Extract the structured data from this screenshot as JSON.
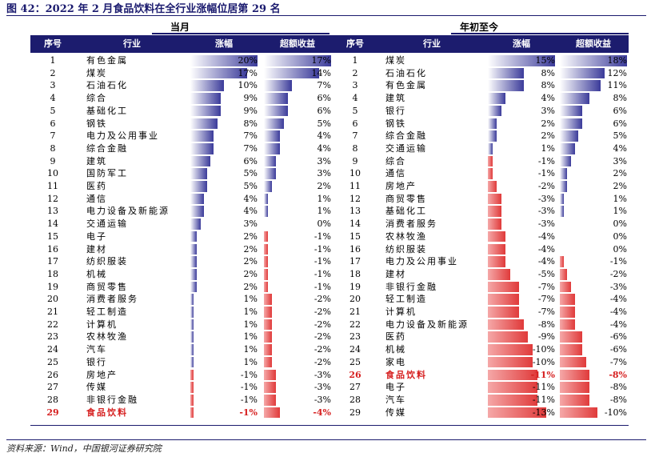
{
  "title": "图 42：2022 年 2 月食品饮料在全行业涨幅位居第 29 名",
  "groups": {
    "left": "当月",
    "right": "年初至今"
  },
  "headers": {
    "rank": "序号",
    "industry": "行业",
    "change": "涨幅",
    "excess": "超额收益"
  },
  "source": "资料来源：Wind，中国银河证券研究院",
  "highlight_industry": "食品饮料",
  "colors": {
    "header_bg": "#1c1c6e",
    "positive_bar": "#3b3b9a",
    "negative_bar": "#e03a3a",
    "highlight_text": "#d61f1f"
  },
  "scales": {
    "month_change_max": 20,
    "month_excess_max": 17,
    "ytd_change_max": 15,
    "ytd_excess_max": 18
  },
  "month": [
    {
      "rank": "1",
      "industry": "有色金属",
      "change": "20%",
      "change_v": 20,
      "excess": "17%",
      "excess_v": 17
    },
    {
      "rank": "2",
      "industry": "煤炭",
      "change": "17%",
      "change_v": 17,
      "excess": "14%",
      "excess_v": 14
    },
    {
      "rank": "3",
      "industry": "石油石化",
      "change": "10%",
      "change_v": 10,
      "excess": "7%",
      "excess_v": 7
    },
    {
      "rank": "4",
      "industry": "综合",
      "change": "9%",
      "change_v": 9,
      "excess": "6%",
      "excess_v": 6
    },
    {
      "rank": "5",
      "industry": "基础化工",
      "change": "9%",
      "change_v": 9,
      "excess": "6%",
      "excess_v": 6
    },
    {
      "rank": "6",
      "industry": "钢铁",
      "change": "8%",
      "change_v": 8,
      "excess": "5%",
      "excess_v": 5
    },
    {
      "rank": "7",
      "industry": "电力及公用事业",
      "change": "7%",
      "change_v": 7,
      "excess": "4%",
      "excess_v": 4
    },
    {
      "rank": "8",
      "industry": "综合金融",
      "change": "7%",
      "change_v": 7,
      "excess": "4%",
      "excess_v": 4
    },
    {
      "rank": "9",
      "industry": "建筑",
      "change": "6%",
      "change_v": 6,
      "excess": "3%",
      "excess_v": 3
    },
    {
      "rank": "10",
      "industry": "国防军工",
      "change": "5%",
      "change_v": 5,
      "excess": "3%",
      "excess_v": 3
    },
    {
      "rank": "11",
      "industry": "医药",
      "change": "5%",
      "change_v": 5,
      "excess": "2%",
      "excess_v": 2
    },
    {
      "rank": "12",
      "industry": "通信",
      "change": "4%",
      "change_v": 4,
      "excess": "1%",
      "excess_v": 1
    },
    {
      "rank": "13",
      "industry": "电力设备及新能源",
      "change": "4%",
      "change_v": 4,
      "excess": "1%",
      "excess_v": 1
    },
    {
      "rank": "14",
      "industry": "交通运输",
      "change": "3%",
      "change_v": 3,
      "excess": "0%",
      "excess_v": 0
    },
    {
      "rank": "15",
      "industry": "电子",
      "change": "2%",
      "change_v": 2,
      "excess": "-1%",
      "excess_v": -1
    },
    {
      "rank": "16",
      "industry": "建材",
      "change": "2%",
      "change_v": 2,
      "excess": "-1%",
      "excess_v": -1
    },
    {
      "rank": "17",
      "industry": "纺织服装",
      "change": "2%",
      "change_v": 2,
      "excess": "-1%",
      "excess_v": -1
    },
    {
      "rank": "18",
      "industry": "机械",
      "change": "2%",
      "change_v": 2,
      "excess": "-1%",
      "excess_v": -1
    },
    {
      "rank": "19",
      "industry": "商贸零售",
      "change": "2%",
      "change_v": 2,
      "excess": "-1%",
      "excess_v": -1
    },
    {
      "rank": "20",
      "industry": "消费者服务",
      "change": "1%",
      "change_v": 1,
      "excess": "-2%",
      "excess_v": -2
    },
    {
      "rank": "21",
      "industry": "轻工制造",
      "change": "1%",
      "change_v": 1,
      "excess": "-2%",
      "excess_v": -2
    },
    {
      "rank": "22",
      "industry": "计算机",
      "change": "1%",
      "change_v": 1,
      "excess": "-2%",
      "excess_v": -2
    },
    {
      "rank": "23",
      "industry": "农林牧渔",
      "change": "1%",
      "change_v": 1,
      "excess": "-2%",
      "excess_v": -2
    },
    {
      "rank": "24",
      "industry": "汽车",
      "change": "1%",
      "change_v": 1,
      "excess": "-2%",
      "excess_v": -2
    },
    {
      "rank": "25",
      "industry": "银行",
      "change": "1%",
      "change_v": 1,
      "excess": "-2%",
      "excess_v": -2
    },
    {
      "rank": "26",
      "industry": "房地产",
      "change": "-1%",
      "change_v": -1,
      "excess": "-3%",
      "excess_v": -3
    },
    {
      "rank": "27",
      "industry": "传媒",
      "change": "-1%",
      "change_v": -1,
      "excess": "-3%",
      "excess_v": -3
    },
    {
      "rank": "28",
      "industry": "非银行金融",
      "change": "-1%",
      "change_v": -1,
      "excess": "-3%",
      "excess_v": -3
    },
    {
      "rank": "29",
      "industry": "食品饮料",
      "change": "-1%",
      "change_v": -1,
      "excess": "-4%",
      "excess_v": -4
    }
  ],
  "ytd": [
    {
      "rank": "1",
      "industry": "煤炭",
      "change": "15%",
      "change_v": 15,
      "excess": "18%",
      "excess_v": 18
    },
    {
      "rank": "2",
      "industry": "石油石化",
      "change": "8%",
      "change_v": 8,
      "excess": "12%",
      "excess_v": 12
    },
    {
      "rank": "3",
      "industry": "有色金属",
      "change": "8%",
      "change_v": 8,
      "excess": "11%",
      "excess_v": 11
    },
    {
      "rank": "4",
      "industry": "建筑",
      "change": "4%",
      "change_v": 4,
      "excess": "8%",
      "excess_v": 8
    },
    {
      "rank": "5",
      "industry": "银行",
      "change": "3%",
      "change_v": 3,
      "excess": "6%",
      "excess_v": 6
    },
    {
      "rank": "6",
      "industry": "钢铁",
      "change": "2%",
      "change_v": 2,
      "excess": "6%",
      "excess_v": 6
    },
    {
      "rank": "7",
      "industry": "综合金融",
      "change": "2%",
      "change_v": 2,
      "excess": "5%",
      "excess_v": 5
    },
    {
      "rank": "8",
      "industry": "交通运输",
      "change": "1%",
      "change_v": 1,
      "excess": "4%",
      "excess_v": 4
    },
    {
      "rank": "9",
      "industry": "综合",
      "change": "-1%",
      "change_v": -1,
      "excess": "3%",
      "excess_v": 3
    },
    {
      "rank": "10",
      "industry": "通信",
      "change": "-1%",
      "change_v": -1,
      "excess": "2%",
      "excess_v": 2
    },
    {
      "rank": "11",
      "industry": "房地产",
      "change": "-2%",
      "change_v": -2,
      "excess": "2%",
      "excess_v": 2
    },
    {
      "rank": "12",
      "industry": "商贸零售",
      "change": "-3%",
      "change_v": -3,
      "excess": "1%",
      "excess_v": 1
    },
    {
      "rank": "13",
      "industry": "基础化工",
      "change": "-3%",
      "change_v": -3,
      "excess": "1%",
      "excess_v": 1
    },
    {
      "rank": "14",
      "industry": "消费者服务",
      "change": "-3%",
      "change_v": -3,
      "excess": "0%",
      "excess_v": 0
    },
    {
      "rank": "15",
      "industry": "农林牧渔",
      "change": "-4%",
      "change_v": -4,
      "excess": "0%",
      "excess_v": 0
    },
    {
      "rank": "16",
      "industry": "纺织服装",
      "change": "-4%",
      "change_v": -4,
      "excess": "0%",
      "excess_v": 0
    },
    {
      "rank": "17",
      "industry": "电力及公用事业",
      "change": "-4%",
      "change_v": -4,
      "excess": "-1%",
      "excess_v": -1
    },
    {
      "rank": "18",
      "industry": "建材",
      "change": "-5%",
      "change_v": -5,
      "excess": "-2%",
      "excess_v": -2
    },
    {
      "rank": "19",
      "industry": "非银行金融",
      "change": "-7%",
      "change_v": -7,
      "excess": "-3%",
      "excess_v": -3
    },
    {
      "rank": "20",
      "industry": "轻工制造",
      "change": "-7%",
      "change_v": -7,
      "excess": "-4%",
      "excess_v": -4
    },
    {
      "rank": "21",
      "industry": "计算机",
      "change": "-7%",
      "change_v": -7,
      "excess": "-4%",
      "excess_v": -4
    },
    {
      "rank": "22",
      "industry": "电力设备及新能源",
      "change": "-8%",
      "change_v": -8,
      "excess": "-4%",
      "excess_v": -4
    },
    {
      "rank": "23",
      "industry": "医药",
      "change": "-9%",
      "change_v": -9,
      "excess": "-6%",
      "excess_v": -6
    },
    {
      "rank": "24",
      "industry": "机械",
      "change": "-10%",
      "change_v": -10,
      "excess": "-6%",
      "excess_v": -6
    },
    {
      "rank": "25",
      "industry": "家电",
      "change": "-10%",
      "change_v": -10,
      "excess": "-7%",
      "excess_v": -7
    },
    {
      "rank": "26",
      "industry": "食品饮料",
      "change": "-11%",
      "change_v": -11,
      "excess": "-8%",
      "excess_v": -8
    },
    {
      "rank": "27",
      "industry": "电子",
      "change": "-11%",
      "change_v": -11,
      "excess": "-8%",
      "excess_v": -8
    },
    {
      "rank": "28",
      "industry": "汽车",
      "change": "-11%",
      "change_v": -11,
      "excess": "-8%",
      "excess_v": -8
    },
    {
      "rank": "29",
      "industry": "传媒",
      "change": "-13%",
      "change_v": -13,
      "excess": "-10%",
      "excess_v": -10
    }
  ]
}
